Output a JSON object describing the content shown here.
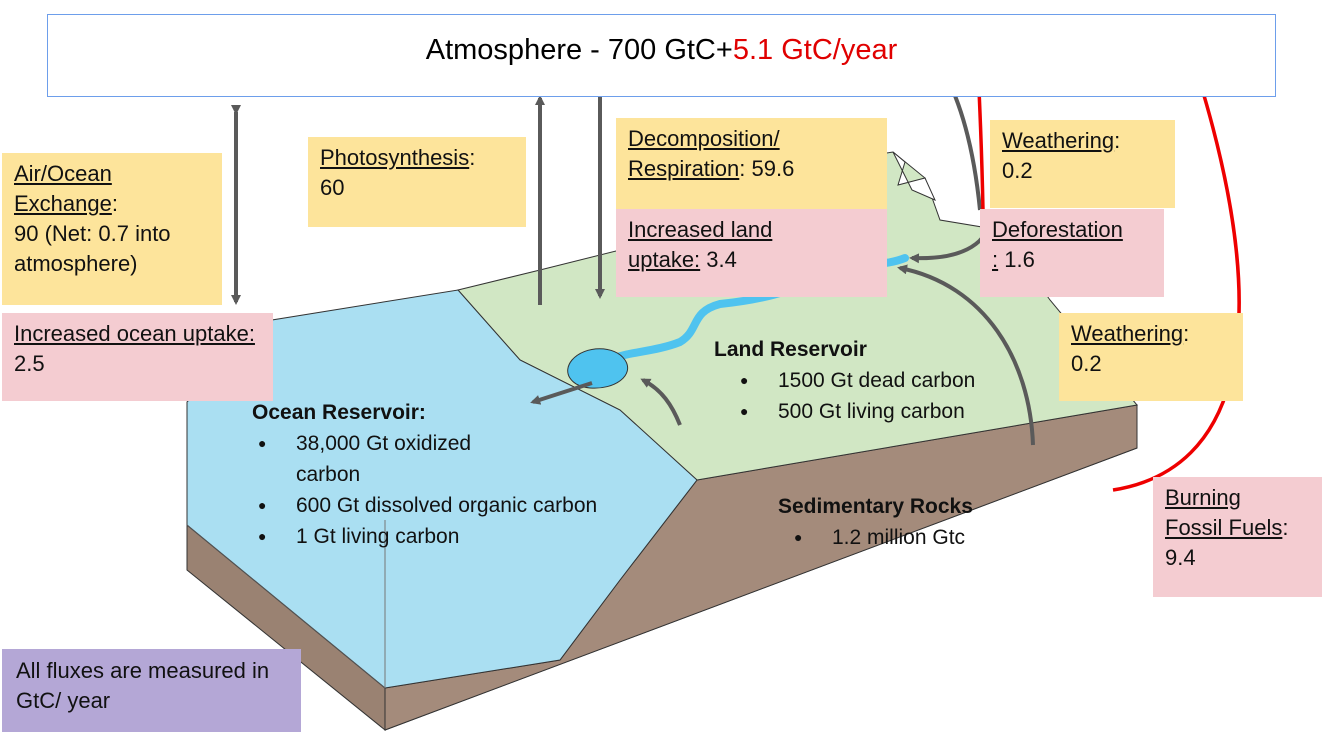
{
  "atmosphere": {
    "prefix": "Atmosphere - 700 GtC+",
    "increase": "5.1 GtC/year"
  },
  "fluxes": {
    "air_ocean": {
      "title": "Air/Ocean Exchange",
      "sep": ":",
      "value": " 90 (Net: 0.7 into atmosphere)"
    },
    "ocean_uptake": {
      "title": "Increased ocean uptake:",
      "value": " 2.5"
    },
    "photosynthesis": {
      "title": "Photosynthesis",
      "sep": ":",
      "value": "60"
    },
    "decomposition": {
      "title_line1": "Decomposition/",
      "title_line2": "Respiration",
      "value": ": 59.6"
    },
    "land_uptake": {
      "title_line1": "Increased land",
      "title_line2": "uptake:",
      "value": " 3.4"
    },
    "weathering_top": {
      "title": "Weathering",
      "sep": ":",
      "value": "0.2"
    },
    "deforestation": {
      "title": "Deforestation",
      "title_tail": ":",
      "value": " 1.6"
    },
    "weathering_mid": {
      "title": "Weathering",
      "sep": ":",
      "value": "0.2"
    },
    "fossil_fuels": {
      "title_line1": "Burning",
      "title_line2": "Fossil Fuels",
      "sep": ":",
      "value": "9.4"
    }
  },
  "reservoirs": {
    "ocean": {
      "title": "Ocean Reservoir:",
      "items": [
        "38,000 Gt oxidized carbon",
        "600 Gt dissolved organic carbon",
        "1 Gt living carbon"
      ]
    },
    "land": {
      "title": "Land Reservoir",
      "items": [
        "1500 Gt dead carbon",
        "500 Gt living carbon"
      ]
    },
    "rocks": {
      "title": "Sedimentary Rocks",
      "items": [
        "1.2 million Gtc"
      ]
    }
  },
  "note": "All fluxes are measured in GtC/ year",
  "colors": {
    "ocean": "#aadff2",
    "land": "#d1e7c4",
    "rock": "#a48b7b",
    "human_flux": "#ee0000",
    "natural_flux": "#5a5a5a"
  }
}
